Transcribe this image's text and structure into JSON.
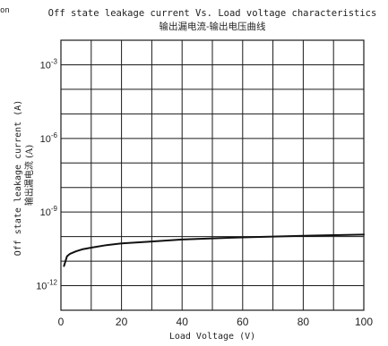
{
  "chart_data": {
    "type": "line",
    "title": "Off state leakage current Vs. Load voltage characteristics",
    "subtitle": "输出漏电流-输出电压曲线",
    "xlabel": "Load Voltage (V)",
    "ylabel": "Off state leakage current (A)",
    "ylabel_cn": "输出漏电流 (A)",
    "corner_text": "on",
    "x_scale": "linear",
    "y_scale": "log",
    "xlim": [
      0,
      100
    ],
    "ylim_log10": [
      -13,
      -2
    ],
    "grid": true,
    "x_ticks": [
      0,
      20,
      40,
      60,
      80,
      100
    ],
    "x_tick_labels": [
      "0",
      "20",
      "40",
      "60",
      "80",
      "100"
    ],
    "y_ticks_log10": [
      -12,
      -9,
      -6,
      -3
    ],
    "y_tick_base": "10",
    "y_tick_exponents": [
      "-12",
      "-9",
      "-6",
      "-3"
    ],
    "series": [
      {
        "x": [
          1,
          2,
          3,
          5,
          7,
          10,
          15,
          20,
          30,
          40,
          50,
          60,
          70,
          80,
          90,
          100
        ],
        "y_log10": [
          -11.2,
          -10.8,
          -10.7,
          -10.6,
          -10.52,
          -10.45,
          -10.35,
          -10.28,
          -10.2,
          -10.12,
          -10.07,
          -10.03,
          -10.0,
          -9.97,
          -9.94,
          -9.92
        ]
      }
    ],
    "line_color": "#111111",
    "grid_color": "#1a1a1a"
  }
}
